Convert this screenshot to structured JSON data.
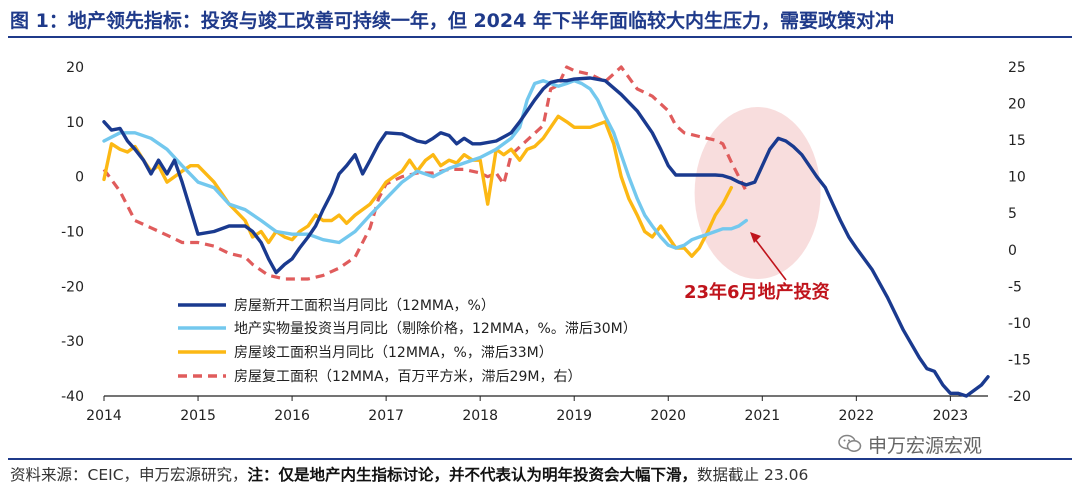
{
  "header": {
    "title": "图 1：地产领先指标：投资与竣工改善可持续一年，但 2024 年下半年面临较大内生压力，需要政策对冲"
  },
  "footer": {
    "source_prefix": "资料来源：CEIC，申万宏源研究，",
    "note_label": "注：",
    "note_text": "仅是地产内生指标讨论，并不代表认为明年投资会大幅下滑，",
    "cutoff": "数据截止 23.06"
  },
  "watermark": {
    "text": "申万宏源宏观",
    "icon": "wechat-icon"
  },
  "chart_data": {
    "type": "line",
    "x_ticks": [
      "2014",
      "2015",
      "2016",
      "2017",
      "2018",
      "2019",
      "2020",
      "2021",
      "2022",
      "2023"
    ],
    "xlim": [
      2014,
      2023.4
    ],
    "y_left": {
      "ylim": [
        -40,
        20
      ],
      "ticks": [
        "20",
        "10",
        "0",
        "-10",
        "-20",
        "-30",
        "-40"
      ]
    },
    "y_right": {
      "ylim": [
        -20,
        25
      ],
      "ticks": [
        "25",
        "20",
        "15",
        "10",
        "5",
        "0",
        "-5",
        "-10",
        "-15",
        "-20"
      ]
    },
    "legend_position": "bottom-left",
    "annotation": {
      "text": "23年6月地产投资",
      "color": "#c0141c"
    },
    "colors": {
      "dark_blue": "#1a3a8f",
      "light_blue": "#73c8ee",
      "gold": "#fcb814",
      "red_dash": "#e05c5c",
      "highlight": "#f6d5d5"
    },
    "series": [
      {
        "name": "房屋新开工面积当月同比（12MMA，%）",
        "axis": "left",
        "style": "solid",
        "color": "#1a3a8f",
        "width": 3.4,
        "points": [
          [
            2014.0,
            10
          ],
          [
            2014.08,
            8.5
          ],
          [
            2014.17,
            8.8
          ],
          [
            2014.25,
            6.5
          ],
          [
            2014.33,
            5
          ],
          [
            2014.42,
            3
          ],
          [
            2014.5,
            0.5
          ],
          [
            2014.58,
            3
          ],
          [
            2014.67,
            0.5
          ],
          [
            2014.75,
            3
          ],
          [
            2014.83,
            -1
          ],
          [
            2014.92,
            -6
          ],
          [
            2015.0,
            -10.5
          ],
          [
            2015.17,
            -10
          ],
          [
            2015.33,
            -9
          ],
          [
            2015.5,
            -9
          ],
          [
            2015.58,
            -10
          ],
          [
            2015.67,
            -12
          ],
          [
            2015.75,
            -15
          ],
          [
            2015.83,
            -17.5
          ],
          [
            2015.92,
            -16
          ],
          [
            2016.0,
            -15
          ],
          [
            2016.08,
            -13
          ],
          [
            2016.17,
            -11
          ],
          [
            2016.25,
            -9
          ],
          [
            2016.33,
            -6
          ],
          [
            2016.42,
            -3
          ],
          [
            2016.5,
            0.5
          ],
          [
            2016.58,
            2
          ],
          [
            2016.67,
            4
          ],
          [
            2016.75,
            0.5
          ],
          [
            2016.83,
            3
          ],
          [
            2016.92,
            6
          ],
          [
            2017.0,
            8
          ],
          [
            2017.17,
            7.8
          ],
          [
            2017.33,
            6.5
          ],
          [
            2017.42,
            6.2
          ],
          [
            2017.5,
            7
          ],
          [
            2017.58,
            8
          ],
          [
            2017.67,
            7.5
          ],
          [
            2017.75,
            6
          ],
          [
            2017.83,
            7
          ],
          [
            2017.92,
            6
          ],
          [
            2018.0,
            6
          ],
          [
            2018.17,
            6.5
          ],
          [
            2018.33,
            8
          ],
          [
            2018.42,
            10
          ],
          [
            2018.5,
            12
          ],
          [
            2018.58,
            14
          ],
          [
            2018.67,
            16
          ],
          [
            2018.75,
            17.2
          ],
          [
            2018.83,
            17.5
          ],
          [
            2018.92,
            17.5
          ],
          [
            2019.0,
            17.8
          ],
          [
            2019.17,
            18
          ],
          [
            2019.33,
            17.5
          ],
          [
            2019.5,
            15
          ],
          [
            2019.67,
            12
          ],
          [
            2019.83,
            8
          ],
          [
            2019.92,
            5
          ],
          [
            2020.0,
            2
          ],
          [
            2020.08,
            0.3
          ],
          [
            2020.33,
            0.3
          ],
          [
            2020.5,
            0.3
          ],
          [
            2020.58,
            0.2
          ],
          [
            2020.67,
            -0.3
          ],
          [
            2020.75,
            -1
          ],
          [
            2020.83,
            -1.5
          ],
          [
            2020.92,
            -1
          ],
          [
            2021.0,
            2
          ],
          [
            2021.08,
            5
          ],
          [
            2021.17,
            7
          ],
          [
            2021.25,
            6.5
          ],
          [
            2021.33,
            5.5
          ],
          [
            2021.42,
            4
          ],
          [
            2021.5,
            2
          ],
          [
            2021.58,
            0
          ],
          [
            2021.67,
            -2
          ],
          [
            2021.75,
            -5
          ],
          [
            2021.83,
            -8
          ],
          [
            2021.92,
            -11
          ],
          [
            2022.0,
            -13
          ],
          [
            2022.17,
            -17
          ],
          [
            2022.33,
            -22
          ],
          [
            2022.5,
            -28
          ],
          [
            2022.67,
            -33
          ],
          [
            2022.75,
            -35
          ],
          [
            2022.83,
            -35.5
          ],
          [
            2022.92,
            -38
          ],
          [
            2023.0,
            -39.5
          ],
          [
            2023.08,
            -39.5
          ],
          [
            2023.17,
            -40
          ],
          [
            2023.25,
            -39
          ],
          [
            2023.33,
            -38
          ],
          [
            2023.4,
            -36.5
          ]
        ]
      },
      {
        "name": "地产实物量投资当月同比（剔除价格，12MMA，%。滞后30M）",
        "axis": "left",
        "style": "solid",
        "color": "#73c8ee",
        "width": 3.4,
        "points": [
          [
            2014.0,
            6.5
          ],
          [
            2014.17,
            8
          ],
          [
            2014.33,
            8
          ],
          [
            2014.5,
            7
          ],
          [
            2014.67,
            5
          ],
          [
            2014.83,
            2
          ],
          [
            2015.0,
            -1
          ],
          [
            2015.17,
            -2
          ],
          [
            2015.33,
            -5
          ],
          [
            2015.5,
            -6
          ],
          [
            2015.67,
            -8
          ],
          [
            2015.83,
            -10
          ],
          [
            2016.0,
            -10.5
          ],
          [
            2016.17,
            -10.5
          ],
          [
            2016.33,
            -11.5
          ],
          [
            2016.5,
            -12
          ],
          [
            2016.67,
            -10
          ],
          [
            2016.83,
            -7
          ],
          [
            2017.0,
            -4
          ],
          [
            2017.17,
            -1
          ],
          [
            2017.33,
            1
          ],
          [
            2017.5,
            0
          ],
          [
            2017.67,
            1.5
          ],
          [
            2017.83,
            2.5
          ],
          [
            2018.0,
            3.5
          ],
          [
            2018.17,
            5
          ],
          [
            2018.33,
            7
          ],
          [
            2018.42,
            9
          ],
          [
            2018.5,
            14
          ],
          [
            2018.58,
            17
          ],
          [
            2018.67,
            17.5
          ],
          [
            2018.75,
            17
          ],
          [
            2018.83,
            16.5
          ],
          [
            2018.92,
            17
          ],
          [
            2019.0,
            17.5
          ],
          [
            2019.08,
            17
          ],
          [
            2019.17,
            16
          ],
          [
            2019.25,
            14
          ],
          [
            2019.33,
            11
          ],
          [
            2019.42,
            8
          ],
          [
            2019.5,
            4
          ],
          [
            2019.58,
            0
          ],
          [
            2019.67,
            -4
          ],
          [
            2019.75,
            -7
          ],
          [
            2019.83,
            -9
          ],
          [
            2019.92,
            -11
          ],
          [
            2020.0,
            -12.5
          ],
          [
            2020.08,
            -13
          ],
          [
            2020.17,
            -12.5
          ],
          [
            2020.25,
            -11.5
          ],
          [
            2020.33,
            -11
          ],
          [
            2020.42,
            -10.5
          ],
          [
            2020.5,
            -10
          ],
          [
            2020.58,
            -9.5
          ],
          [
            2020.67,
            -9.5
          ],
          [
            2020.75,
            -9
          ],
          [
            2020.83,
            -8
          ]
        ]
      },
      {
        "name": "房屋竣工面积当月同比（12MMA，%，滞后33M）",
        "axis": "left",
        "style": "solid",
        "color": "#fcb814",
        "width": 3.4,
        "points": [
          [
            2014.0,
            -0.5
          ],
          [
            2014.08,
            6
          ],
          [
            2014.17,
            5
          ],
          [
            2014.25,
            4.5
          ],
          [
            2014.33,
            5.5
          ],
          [
            2014.42,
            3
          ],
          [
            2014.5,
            1
          ],
          [
            2014.58,
            2
          ],
          [
            2014.67,
            -1
          ],
          [
            2014.75,
            0
          ],
          [
            2014.83,
            1
          ],
          [
            2014.92,
            2
          ],
          [
            2015.0,
            2
          ],
          [
            2015.17,
            -1
          ],
          [
            2015.33,
            -5
          ],
          [
            2015.5,
            -8
          ],
          [
            2015.58,
            -11
          ],
          [
            2015.67,
            -10
          ],
          [
            2015.75,
            -12
          ],
          [
            2015.83,
            -10
          ],
          [
            2015.92,
            -11
          ],
          [
            2016.0,
            -11.5
          ],
          [
            2016.08,
            -10
          ],
          [
            2016.17,
            -9
          ],
          [
            2016.25,
            -7
          ],
          [
            2016.33,
            -8
          ],
          [
            2016.42,
            -8
          ],
          [
            2016.5,
            -7
          ],
          [
            2016.58,
            -8.5
          ],
          [
            2016.67,
            -7
          ],
          [
            2016.75,
            -6
          ],
          [
            2016.83,
            -5
          ],
          [
            2016.92,
            -3
          ],
          [
            2017.0,
            -1
          ],
          [
            2017.08,
            0
          ],
          [
            2017.17,
            1
          ],
          [
            2017.25,
            3
          ],
          [
            2017.33,
            1
          ],
          [
            2017.42,
            3
          ],
          [
            2017.5,
            4
          ],
          [
            2017.58,
            2
          ],
          [
            2017.67,
            3
          ],
          [
            2017.75,
            2.5
          ],
          [
            2017.83,
            4
          ],
          [
            2017.92,
            3
          ],
          [
            2018.0,
            3
          ],
          [
            2018.08,
            -5
          ],
          [
            2018.17,
            5
          ],
          [
            2018.25,
            4
          ],
          [
            2018.33,
            5
          ],
          [
            2018.42,
            3
          ],
          [
            2018.5,
            5
          ],
          [
            2018.58,
            5.5
          ],
          [
            2018.67,
            7
          ],
          [
            2018.75,
            9
          ],
          [
            2018.83,
            11
          ],
          [
            2018.92,
            10
          ],
          [
            2019.0,
            9
          ],
          [
            2019.17,
            9
          ],
          [
            2019.33,
            10
          ],
          [
            2019.42,
            6
          ],
          [
            2019.5,
            0
          ],
          [
            2019.58,
            -4
          ],
          [
            2019.67,
            -7
          ],
          [
            2019.75,
            -10
          ],
          [
            2019.83,
            -11
          ],
          [
            2019.92,
            -9
          ],
          [
            2020.0,
            -11
          ],
          [
            2020.08,
            -13
          ],
          [
            2020.17,
            -13
          ],
          [
            2020.25,
            -14.5
          ],
          [
            2020.33,
            -13
          ],
          [
            2020.42,
            -10
          ],
          [
            2020.5,
            -7
          ],
          [
            2020.58,
            -5
          ],
          [
            2020.67,
            -2
          ]
        ]
      },
      {
        "name": "房屋复工面积（12MMA，百万平方米，滞后29M，右）",
        "axis": "right",
        "style": "dashed",
        "color": "#e05c5c",
        "width": 3.2,
        "points": [
          [
            2014.0,
            11
          ],
          [
            2014.17,
            8
          ],
          [
            2014.33,
            4
          ],
          [
            2014.5,
            3
          ],
          [
            2014.67,
            2
          ],
          [
            2014.83,
            1
          ],
          [
            2015.0,
            1
          ],
          [
            2015.17,
            0.5
          ],
          [
            2015.33,
            -0.5
          ],
          [
            2015.5,
            -1
          ],
          [
            2015.58,
            -2
          ],
          [
            2015.75,
            -3.5
          ],
          [
            2015.92,
            -4
          ],
          [
            2016.17,
            -4
          ],
          [
            2016.33,
            -3.5
          ],
          [
            2016.5,
            -2.5
          ],
          [
            2016.67,
            -1
          ],
          [
            2016.83,
            3
          ],
          [
            2016.92,
            7
          ],
          [
            2017.0,
            9
          ],
          [
            2017.17,
            10
          ],
          [
            2017.33,
            10.5
          ],
          [
            2017.5,
            10.5
          ],
          [
            2017.67,
            11
          ],
          [
            2017.83,
            11
          ],
          [
            2018.0,
            10.5
          ],
          [
            2018.08,
            10
          ],
          [
            2018.17,
            10.5
          ],
          [
            2018.25,
            9
          ],
          [
            2018.33,
            13
          ],
          [
            2018.5,
            15
          ],
          [
            2018.67,
            17
          ],
          [
            2018.75,
            22
          ],
          [
            2018.83,
            22.5
          ],
          [
            2018.92,
            25
          ],
          [
            2019.0,
            24.5
          ],
          [
            2019.17,
            24
          ],
          [
            2019.33,
            23
          ],
          [
            2019.5,
            25
          ],
          [
            2019.67,
            22
          ],
          [
            2019.83,
            21
          ],
          [
            2020.0,
            19
          ],
          [
            2020.08,
            17
          ],
          [
            2020.17,
            16
          ],
          [
            2020.33,
            15.5
          ],
          [
            2020.5,
            15
          ],
          [
            2020.58,
            14.5
          ],
          [
            2020.67,
            12
          ],
          [
            2020.75,
            10
          ],
          [
            2020.83,
            8
          ]
        ]
      }
    ]
  }
}
